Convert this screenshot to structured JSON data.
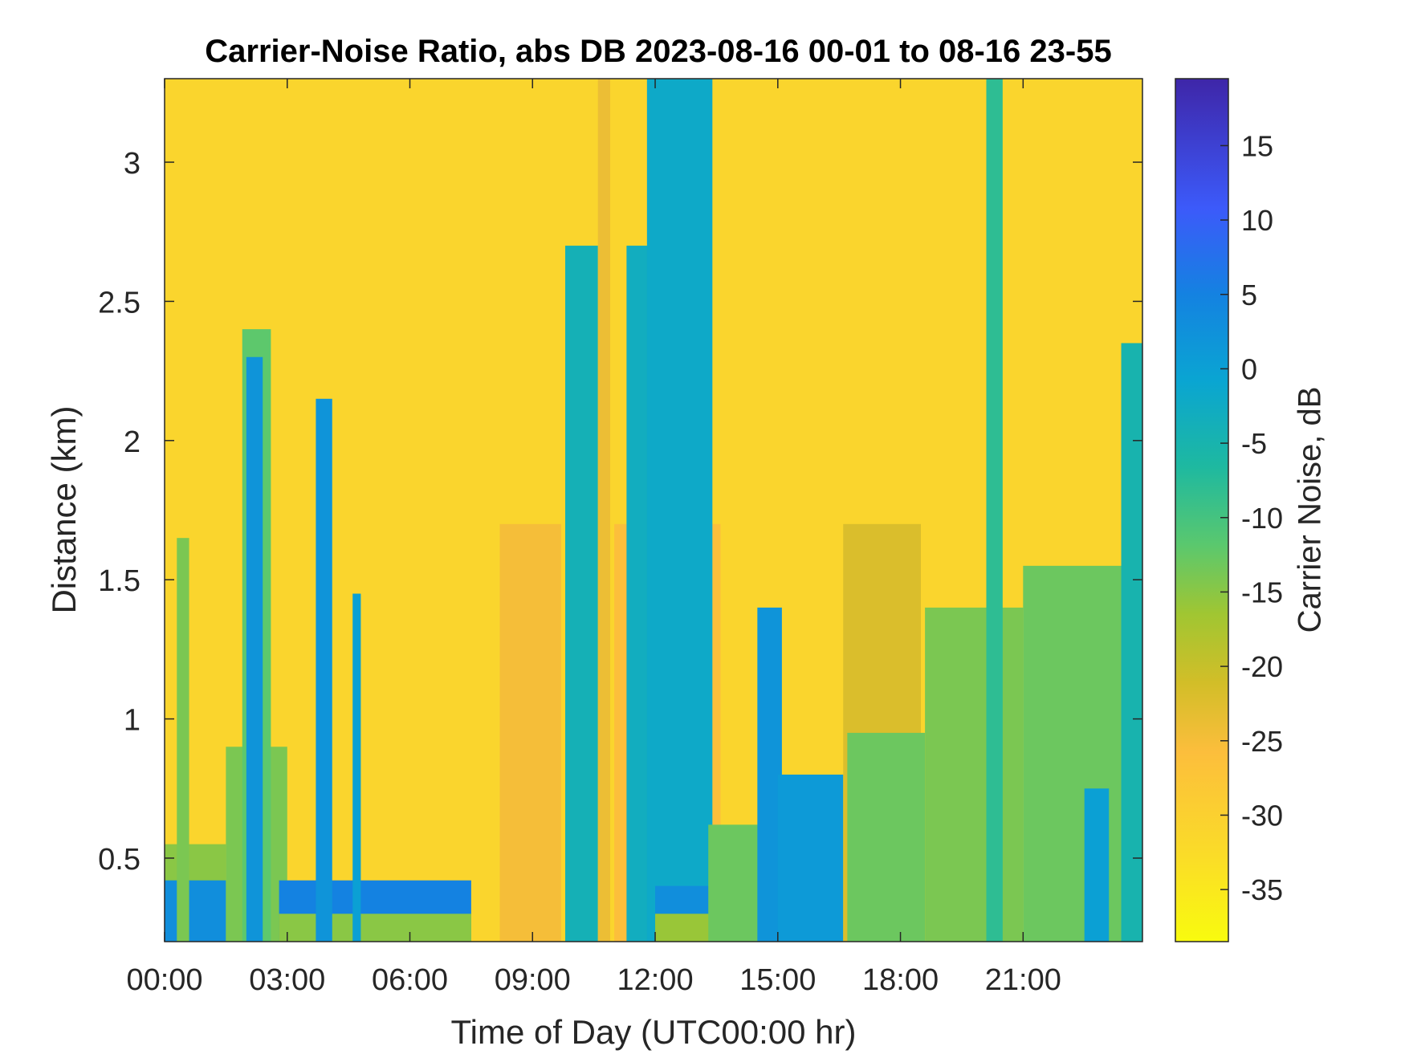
{
  "chart_data": {
    "type": "heatmap",
    "title": "Carrier-Noise Ratio, abs DB 2023-08-16 00-01 to 08-16 23-55",
    "xlabel": "Time of Day (UTC00:00 hr)",
    "ylabel": "Distance (km)",
    "colorbar_label": "Carrier Noise, dB",
    "x_unit": "hour",
    "xlim": [
      0,
      23.92
    ],
    "ylim": [
      0.2,
      3.3
    ],
    "clim": [
      -38.5,
      19.5
    ],
    "colormap": "parula-reversed",
    "x_ticks": [
      0,
      3,
      6,
      9,
      12,
      15,
      18,
      21
    ],
    "x_tick_labels": [
      "00:00",
      "03:00",
      "06:00",
      "09:00",
      "12:00",
      "15:00",
      "18:00",
      "21:00"
    ],
    "y_ticks": [
      0.5,
      1,
      1.5,
      2,
      2.5,
      3
    ],
    "y_tick_labels": [
      "0.5",
      "1",
      "1.5",
      "2",
      "2.5",
      "3"
    ],
    "colorbar_ticks": [
      -35,
      -30,
      -25,
      -20,
      -15,
      -10,
      -5,
      0,
      5,
      10,
      15
    ],
    "colorbar_tick_labels": [
      "-35",
      "-30",
      "-25",
      "-20",
      "-15",
      "-10",
      "-5",
      "0",
      "5",
      "10",
      "15"
    ],
    "background_value": -31,
    "regions": [
      {
        "t0": 0.0,
        "t1": 1.5,
        "top_km": 0.55,
        "value": -15
      },
      {
        "t0": 0.0,
        "t1": 1.5,
        "top_km": 0.42,
        "value": 3
      },
      {
        "t0": 0.3,
        "t1": 0.6,
        "top_km": 1.65,
        "value": -14
      },
      {
        "t0": 1.5,
        "t1": 3.0,
        "top_km": 0.9,
        "value": -14
      },
      {
        "t0": 1.9,
        "t1": 2.6,
        "top_km": 2.4,
        "value": -12
      },
      {
        "t0": 2.0,
        "t1": 2.4,
        "top_km": 2.3,
        "value": 2
      },
      {
        "t0": 2.8,
        "t1": 7.5,
        "top_km": 0.42,
        "value": 5
      },
      {
        "t0": 2.8,
        "t1": 7.5,
        "top_km": 0.3,
        "value": -15
      },
      {
        "t0": 3.7,
        "t1": 4.1,
        "top_km": 2.15,
        "value": 2
      },
      {
        "t0": 4.6,
        "t1": 4.8,
        "top_km": 1.45,
        "value": 0
      },
      {
        "t0": 8.2,
        "t1": 9.7,
        "top_km": 1.7,
        "value": -25
      },
      {
        "t0": 9.8,
        "t1": 10.6,
        "top_km": 2.7,
        "value": -4
      },
      {
        "t0": 10.6,
        "t1": 10.9,
        "top_km": 3.3,
        "value": -24
      },
      {
        "t0": 11.0,
        "t1": 13.6,
        "top_km": 1.7,
        "value": -26
      },
      {
        "t0": 11.3,
        "t1": 12.0,
        "top_km": 2.7,
        "value": -3
      },
      {
        "t0": 11.8,
        "t1": 13.4,
        "top_km": 3.3,
        "value": -2
      },
      {
        "t0": 12.0,
        "t1": 13.5,
        "top_km": 0.4,
        "value": 3
      },
      {
        "t0": 12.0,
        "t1": 16.5,
        "top_km": 0.3,
        "value": -16
      },
      {
        "t0": 13.3,
        "t1": 14.8,
        "top_km": 0.62,
        "value": -13
      },
      {
        "t0": 14.5,
        "t1": 15.1,
        "top_km": 1.4,
        "value": 2
      },
      {
        "t0": 15.0,
        "t1": 16.6,
        "top_km": 0.8,
        "value": 1
      },
      {
        "t0": 16.6,
        "t1": 18.5,
        "top_km": 1.7,
        "value": -22
      },
      {
        "t0": 16.7,
        "t1": 18.6,
        "top_km": 0.95,
        "value": -13
      },
      {
        "t0": 18.6,
        "t1": 21.0,
        "top_km": 1.4,
        "value": -14
      },
      {
        "t0": 20.1,
        "t1": 20.5,
        "top_km": 3.3,
        "value": -8
      },
      {
        "t0": 21.0,
        "t1": 23.92,
        "top_km": 1.55,
        "value": -13
      },
      {
        "t0": 22.5,
        "t1": 23.1,
        "top_km": 0.75,
        "value": 0
      },
      {
        "t0": 23.4,
        "t1": 23.92,
        "top_km": 2.35,
        "value": -5
      }
    ]
  }
}
